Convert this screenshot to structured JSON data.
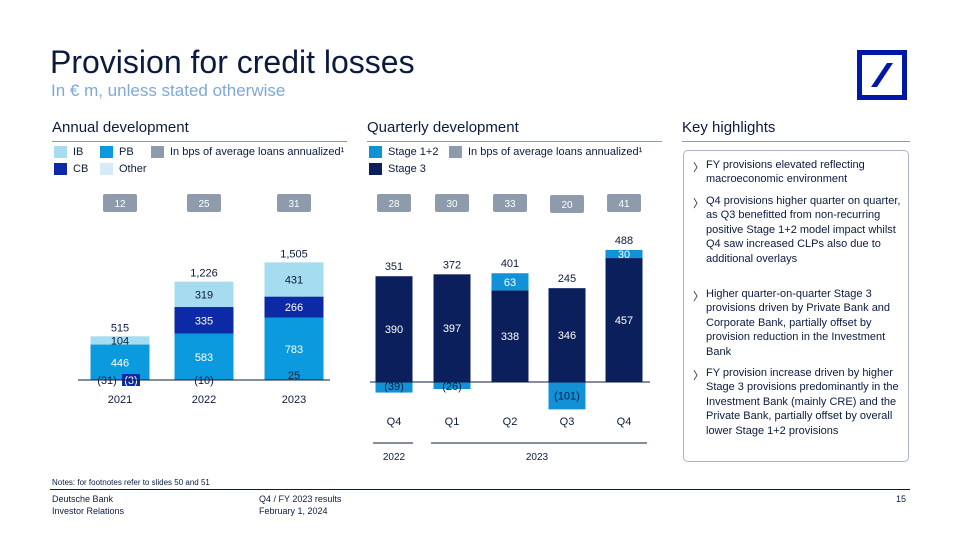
{
  "header": {
    "title": "Provision for credit losses",
    "subtitle": "In € m, unless stated otherwise"
  },
  "colors": {
    "ib": "#a6dcef",
    "pb": "#0b9ade",
    "cb": "#0c2aa6",
    "other": "#d5ecf8",
    "stage12": "#1291d6",
    "stage3": "#0b1f5c",
    "bps": "#8d9bad",
    "brand": "#0018a8"
  },
  "logo": {
    "icon": "deutsche-bank-logo"
  },
  "annual": {
    "heading": "Annual development",
    "legend": {
      "ib": "IB",
      "pb": "PB",
      "cb": "CB",
      "other": "Other",
      "bps": "In bps of average loans annualized¹"
    }
  },
  "quarterly": {
    "heading": "Quarterly development",
    "legend": {
      "stage12": "Stage 1+2",
      "stage3": "Stage 3",
      "bps": "In bps of average loans annualized¹"
    },
    "year_groups": [
      "2022",
      "2023"
    ]
  },
  "chart_data": [
    {
      "type": "bar",
      "stacked": true,
      "categories": [
        "2021",
        "2022",
        "2023"
      ],
      "series": [
        {
          "name": "PB",
          "values": [
            446,
            583,
            783
          ]
        },
        {
          "name": "CB",
          "values": [
            -3,
            335,
            266
          ]
        },
        {
          "name": "IB",
          "values": [
            104,
            319,
            431
          ]
        },
        {
          "name": "Other",
          "values": [
            -31,
            -10,
            25
          ]
        }
      ],
      "totals": [
        515,
        1226,
        1505
      ],
      "bps": [
        12,
        25,
        31
      ],
      "data_labels": {
        "PB": [
          "446",
          "583",
          "783"
        ],
        "CB": [
          "(3)",
          "335",
          "266"
        ],
        "IB": [
          "104",
          "319",
          "431"
        ],
        "Other": [
          "(31)",
          "(10)",
          "25"
        ],
        "totals": [
          "515",
          "1,226",
          "1,505"
        ],
        "bps": [
          "12",
          "25",
          "31"
        ]
      }
    },
    {
      "type": "bar",
      "stacked": true,
      "categories": [
        "Q4",
        "Q1",
        "Q2",
        "Q3",
        "Q4"
      ],
      "series": [
        {
          "name": "Stage 3",
          "values": [
            390,
            397,
            338,
            346,
            457
          ]
        },
        {
          "name": "Stage 1+2",
          "values": [
            -39,
            -26,
            63,
            -101,
            30
          ]
        }
      ],
      "totals": [
        351,
        372,
        401,
        245,
        488
      ],
      "bps": [
        28,
        30,
        33,
        20,
        41
      ],
      "data_labels": {
        "Stage 3": [
          "390",
          "397",
          "338",
          "346",
          "457"
        ],
        "Stage 1+2": [
          "(39)",
          "(26)",
          "63",
          "(101)",
          "30"
        ],
        "totals": [
          "351",
          "372",
          "401",
          "245",
          "488"
        ],
        "bps": [
          "28",
          "30",
          "33",
          "20",
          "41"
        ]
      }
    }
  ],
  "highlights": {
    "heading": "Key highlights",
    "items": [
      "FY provisions elevated reflecting macroeconomic environment",
      "Q4 provisions higher quarter on quarter, as Q3 benefitted from non-recurring positive Stage 1+2 model impact whilst Q4 saw increased CLPs also due to additional overlays",
      "Higher quarter-on-quarter  Stage 3 provisions driven by Private Bank and Corporate Bank, partially offset by provision reduction in the Investment Bank",
      "FY provision increase driven by higher Stage 3 provisions predominantly in the Investment Bank (mainly CRE) and the Private Bank, partially offset by overall lower Stage 1+2 provisions"
    ]
  },
  "notes": "Notes: for footnotes refer to slides 50 and 51",
  "footer": {
    "company": "Deutsche Bank",
    "department": "Investor Relations",
    "report": "Q4 / FY 2023 results",
    "date": "February  1, 2024",
    "page": "15"
  }
}
